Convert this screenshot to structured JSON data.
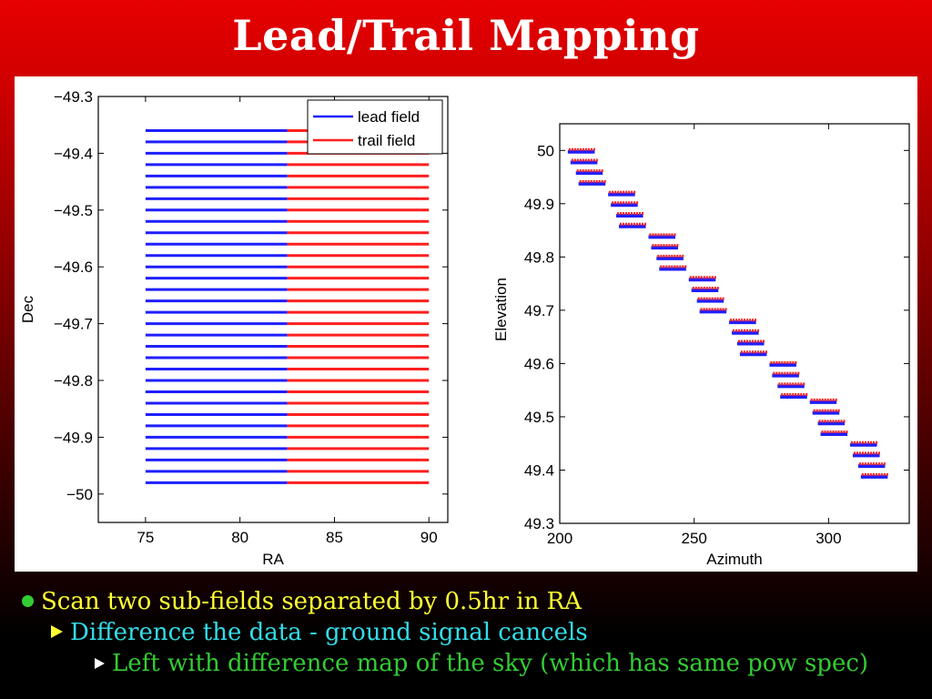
{
  "slide": {
    "title": "Lead/Trail Mapping",
    "bullets": [
      {
        "text": "Scan two sub-fields separated by 0.5hr in RA",
        "level": 1
      },
      {
        "text": "Difference the data - ground signal cancels",
        "level": 2
      },
      {
        "text": "Left with difference map of the sky (which has same pow spec)",
        "level": 3
      }
    ]
  },
  "colors": {
    "lead": "#1f1fff",
    "trail": "#ff1f1f",
    "bullet_level1": "#ffff33",
    "bullet_level2": "#33dde8",
    "bullet_level3": "#33cc33"
  },
  "chart_data": [
    {
      "type": "line",
      "xlabel": "RA",
      "ylabel": "Dec",
      "xlim": [
        72.5,
        91
      ],
      "ylim": [
        -50.05,
        -49.3
      ],
      "xticks": [
        75,
        80,
        85,
        90
      ],
      "yticks": [
        -49.3,
        -49.4,
        -49.5,
        -49.6,
        -49.7,
        -49.8,
        -49.9,
        -50
      ],
      "ytick_labels": [
        "−49.3",
        "−49.4",
        "−49.5",
        "−49.6",
        "−49.7",
        "−49.8",
        "−49.9",
        "−50"
      ],
      "legend": {
        "position": "top-right",
        "entries": [
          "lead field",
          "trail field"
        ]
      },
      "series": [
        {
          "name": "lead field",
          "x_range": [
            75,
            82.5
          ],
          "dec_start": -49.36,
          "dec_end": -49.98,
          "dec_step": -0.02
        },
        {
          "name": "trail field",
          "x_range": [
            82.5,
            90
          ],
          "dec_start": -49.36,
          "dec_end": -49.98,
          "dec_step": -0.02
        }
      ]
    },
    {
      "type": "scatter",
      "xlabel": "Azimuth",
      "ylabel": "Elevation",
      "xlim": [
        200,
        330
      ],
      "ylim": [
        49.3,
        50.05
      ],
      "xticks": [
        200,
        250,
        300
      ],
      "yticks": [
        49.3,
        49.4,
        49.5,
        49.6,
        49.7,
        49.8,
        49.9,
        50
      ],
      "ytick_labels": [
        "49.3",
        "49.4",
        "49.5",
        "49.6",
        "49.7",
        "49.8",
        "49.9",
        "50"
      ],
      "segments": [
        {
          "az": [
            203,
            213
          ],
          "el": 50.0
        },
        {
          "az": [
            204,
            214
          ],
          "el": 49.98
        },
        {
          "az": [
            206,
            216
          ],
          "el": 49.96
        },
        {
          "az": [
            207,
            217
          ],
          "el": 49.94
        },
        {
          "az": [
            218,
            228
          ],
          "el": 49.92
        },
        {
          "az": [
            219,
            229
          ],
          "el": 49.9
        },
        {
          "az": [
            221,
            231
          ],
          "el": 49.88
        },
        {
          "az": [
            222,
            232
          ],
          "el": 49.86
        },
        {
          "az": [
            233,
            243
          ],
          "el": 49.84
        },
        {
          "az": [
            234,
            244
          ],
          "el": 49.82
        },
        {
          "az": [
            236,
            246
          ],
          "el": 49.8
        },
        {
          "az": [
            237,
            247
          ],
          "el": 49.78
        },
        {
          "az": [
            248,
            258
          ],
          "el": 49.76
        },
        {
          "az": [
            249,
            259
          ],
          "el": 49.74
        },
        {
          "az": [
            251,
            261
          ],
          "el": 49.72
        },
        {
          "az": [
            252,
            262
          ],
          "el": 49.7
        },
        {
          "az": [
            263,
            273
          ],
          "el": 49.68
        },
        {
          "az": [
            264,
            274
          ],
          "el": 49.66
        },
        {
          "az": [
            266,
            276
          ],
          "el": 49.64
        },
        {
          "az": [
            267,
            277
          ],
          "el": 49.62
        },
        {
          "az": [
            278,
            288
          ],
          "el": 49.6
        },
        {
          "az": [
            279,
            289
          ],
          "el": 49.58
        },
        {
          "az": [
            281,
            291
          ],
          "el": 49.56
        },
        {
          "az": [
            282,
            292
          ],
          "el": 49.54
        },
        {
          "az": [
            293,
            303
          ],
          "el": 49.53
        },
        {
          "az": [
            294,
            304
          ],
          "el": 49.51
        },
        {
          "az": [
            296,
            306
          ],
          "el": 49.49
        },
        {
          "az": [
            297,
            307
          ],
          "el": 49.47
        },
        {
          "az": [
            308,
            318
          ],
          "el": 49.45
        },
        {
          "az": [
            309,
            319
          ],
          "el": 49.43
        },
        {
          "az": [
            311,
            321
          ],
          "el": 49.41
        },
        {
          "az": [
            312,
            322
          ],
          "el": 49.39
        }
      ]
    }
  ]
}
